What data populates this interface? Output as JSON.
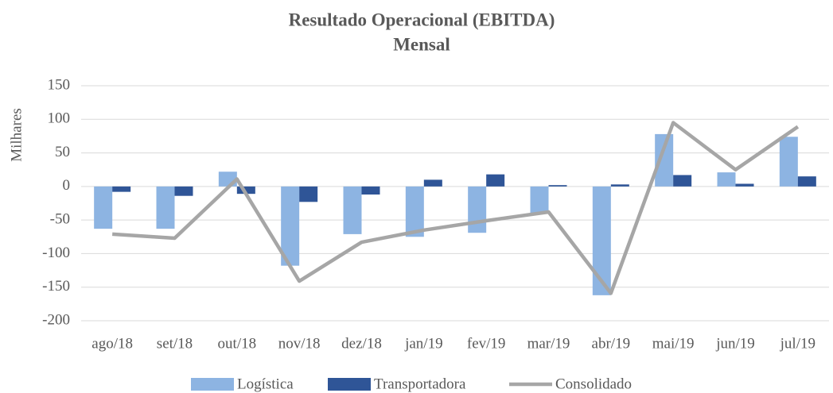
{
  "chart_data": {
    "type": "bar_line",
    "title": "Resultado Operacional (EBITDA)",
    "subtitle": "Mensal",
    "y_label": "Milhares",
    "categories": [
      "ago/18",
      "set/18",
      "out/18",
      "nov/18",
      "dez/18",
      "jan/19",
      "fev/19",
      "mar/19",
      "abr/19",
      "mai/19",
      "jun/19",
      "jul/19"
    ],
    "series": [
      {
        "name": "Logística",
        "type": "bar",
        "color": "#8db4e2",
        "values": [
          -63,
          -63,
          22,
          -118,
          -71,
          -75,
          -69,
          -40,
          -162,
          78,
          21,
          74
        ]
      },
      {
        "name": "Transportadora",
        "type": "bar",
        "color": "#2f5597",
        "values": [
          -8,
          -14,
          -11,
          -23,
          -12,
          10,
          18,
          2,
          3,
          17,
          4,
          15
        ]
      },
      {
        "name": "Consolidado",
        "type": "line",
        "color": "#a6a6a6",
        "values": [
          -71,
          -77,
          11,
          -141,
          -83,
          -65,
          -51,
          -38,
          -159,
          95,
          25,
          89
        ]
      }
    ],
    "ylim": [
      -200,
      150
    ],
    "yticks": [
      -200,
      -150,
      -100,
      -50,
      0,
      50,
      100,
      150
    ],
    "grid": true,
    "legend": "bottom"
  }
}
